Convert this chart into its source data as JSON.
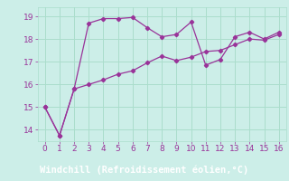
{
  "x": [
    0,
    1,
    2,
    3,
    4,
    5,
    6,
    7,
    8,
    9,
    10,
    11,
    12,
    13,
    14,
    15,
    16
  ],
  "line1": [
    15.0,
    13.75,
    15.8,
    18.7,
    18.9,
    18.9,
    18.95,
    18.5,
    18.1,
    18.2,
    18.75,
    16.85,
    17.1,
    18.1,
    18.3,
    18.0,
    18.3
  ],
  "line2": [
    15.0,
    13.75,
    15.8,
    16.0,
    16.2,
    16.45,
    16.6,
    16.95,
    17.25,
    17.05,
    17.2,
    17.45,
    17.5,
    17.75,
    18.0,
    17.95,
    18.2
  ],
  "line_color": "#993399",
  "bg_color": "#cceee8",
  "grid_color": "#aaddcc",
  "xlabel": "Windchill (Refroidissement éolien,°C)",
  "xlabel_color": "#ffffff",
  "xlabel_bg": "#9933aa",
  "tick_color": "#993399",
  "tick_fontsize": 6.5,
  "xlim": [
    -0.5,
    16.5
  ],
  "ylim": [
    13.5,
    19.4
  ],
  "yticks": [
    14,
    15,
    16,
    17,
    18,
    19
  ],
  "xticks": [
    0,
    1,
    2,
    3,
    4,
    5,
    6,
    7,
    8,
    9,
    10,
    11,
    12,
    13,
    14,
    15,
    16
  ]
}
